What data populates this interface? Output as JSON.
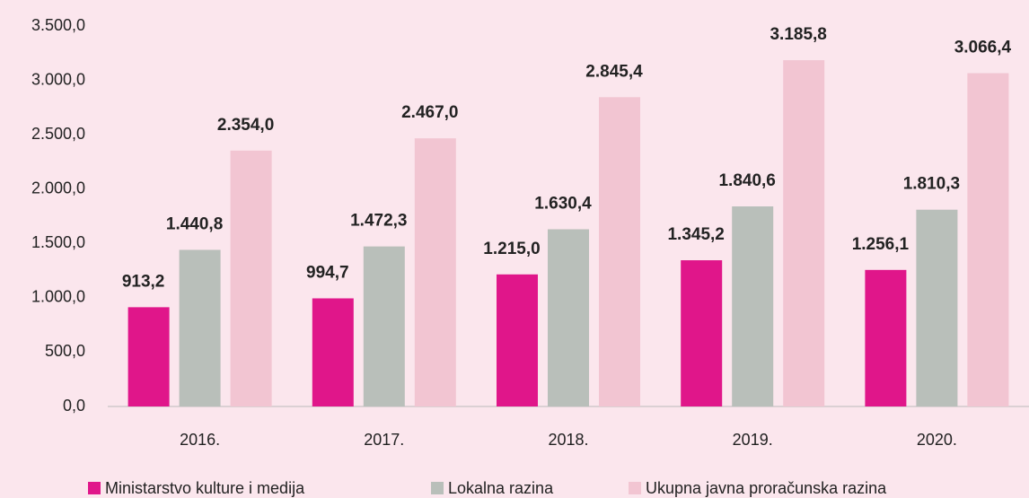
{
  "chart_data": {
    "type": "bar",
    "categories": [
      "2016.",
      "2017.",
      "2018.",
      "2019.",
      "2020."
    ],
    "series": [
      {
        "name": "Ministarstvo kulture i medija",
        "color": "#e0168a",
        "values": [
          913.2,
          994.7,
          1215.0,
          1345.2,
          1256.1
        ],
        "value_labels": [
          "913,2",
          "994,7",
          "1.215,0",
          "1.345,2",
          "1.256,1"
        ]
      },
      {
        "name": "Lokalna razina",
        "color": "#b9bfba",
        "values": [
          1440.8,
          1472.3,
          1630.4,
          1840.6,
          1810.3
        ],
        "value_labels": [
          "1.440,8",
          "1.472,3",
          "1.630,4",
          "1.840,6",
          "1.810,3"
        ]
      },
      {
        "name": "Ukupna javna proračunska razina",
        "color": "#f2c5d2",
        "values": [
          2354.0,
          2467.0,
          2845.4,
          3185.8,
          3066.4
        ],
        "value_labels": [
          "2.354,0",
          "2.467,0",
          "2.845,4",
          "3.185,8",
          "3.066,4"
        ]
      }
    ],
    "ylim": [
      0,
      3500
    ],
    "yticks": [
      {
        "value": 0,
        "label": "0,0"
      },
      {
        "value": 500,
        "label": "500,0"
      },
      {
        "value": 1000,
        "label": "1.000,0"
      },
      {
        "value": 1500,
        "label": "1.500,0"
      },
      {
        "value": 2000,
        "label": "2.000,0"
      },
      {
        "value": 2500,
        "label": "2.500,0"
      },
      {
        "value": 3000,
        "label": "3.000,0"
      },
      {
        "value": 3500,
        "label": "3.500,0"
      }
    ],
    "grid": false,
    "legend": "bottom"
  }
}
